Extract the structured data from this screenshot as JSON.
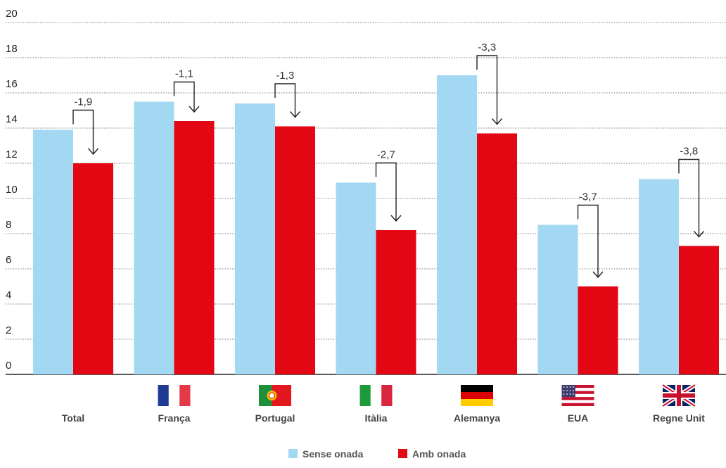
{
  "chart_data": {
    "type": "bar",
    "title": "",
    "xlabel": "",
    "ylabel": "",
    "ylim": [
      0,
      20
    ],
    "yticks": [
      0,
      2,
      4,
      6,
      8,
      10,
      12,
      14,
      16,
      18,
      20
    ],
    "grid": true,
    "legend_position": "bottom-center",
    "categories": [
      "Total",
      "França",
      "Portugal",
      "Itàlia",
      "Alemanya",
      "EUA",
      "Regne Unit"
    ],
    "series": [
      {
        "name": "Sense onada",
        "color": "#a3d8f3",
        "values": [
          13.9,
          15.5,
          15.4,
          10.9,
          17.0,
          8.5,
          11.1
        ]
      },
      {
        "name": "Amb onada",
        "color": "#e30613",
        "values": [
          12.0,
          14.4,
          14.1,
          8.2,
          13.7,
          5.0,
          7.3
        ]
      }
    ],
    "differences": [
      "-1,9",
      "-1,1",
      "-1,3",
      "-2,7",
      "-3,3",
      "-3,7",
      "-3,8"
    ],
    "flags": [
      "",
      "france-flag",
      "portugal-flag",
      "italy-flag",
      "germany-flag",
      "usa-flag",
      "uk-flag"
    ]
  }
}
